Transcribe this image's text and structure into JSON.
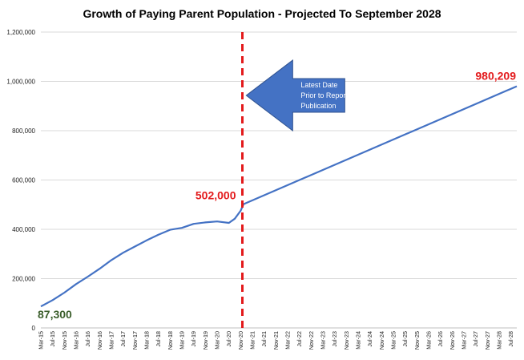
{
  "chart_data": {
    "type": "line",
    "title": "Growth of Paying Parent Population - Projected To September 2028",
    "xlabel": "",
    "ylabel": "",
    "ylim": [
      0,
      1200000
    ],
    "y_ticks": [
      "0",
      "200,000",
      "400,000",
      "600,000",
      "800,000",
      "1,000,000",
      "1,200,000"
    ],
    "grid": "horizontal",
    "x_ticks": [
      "Mar-15",
      "Jul-15",
      "Nov-15",
      "Mar-16",
      "Jul-16",
      "Nov-16",
      "Mar-17",
      "Jul-17",
      "Nov-17",
      "Mar-18",
      "Jul-18",
      "Nov-18",
      "Mar-19",
      "Jul-19",
      "Nov-19",
      "Mar-20",
      "Jul-20",
      "Nov-20",
      "Mar-21",
      "Jul-21",
      "Nov-21",
      "Mar-22",
      "Jul-22",
      "Nov-22",
      "Mar-23",
      "Jul-23",
      "Nov-23",
      "Mar-24",
      "Jul-24",
      "Nov-24",
      "Mar-25",
      "Jul-25",
      "Nov-25",
      "Mar-26",
      "Jul-26",
      "Nov-26",
      "Mar-27",
      "Jul-27",
      "Nov-27",
      "Mar-28",
      "Jul-28"
    ],
    "series": [
      {
        "color": "#4472c4",
        "x": [
          "Mar-15",
          "Jul-15",
          "Nov-15",
          "Mar-16",
          "Jul-16",
          "Nov-16",
          "Mar-17",
          "Jul-17",
          "Nov-17",
          "Mar-18",
          "Jul-18",
          "Nov-18",
          "Mar-19",
          "Jul-19",
          "Nov-19",
          "Mar-20",
          "Jul-20",
          "Sep-20",
          "Nov-20",
          "Dec-20",
          "Sep-28"
        ],
        "values": [
          87300,
          113000,
          143000,
          178000,
          208000,
          240000,
          275000,
          305000,
          330000,
          355000,
          378000,
          398000,
          406000,
          422000,
          428000,
          432000,
          426000,
          443000,
          475000,
          502000,
          980209
        ]
      }
    ],
    "annotations": [
      {
        "text": "87,300",
        "color": "#3b5e2b"
      },
      {
        "text": "502,000",
        "color": "#e31a1c"
      },
      {
        "text": "980,209",
        "color": "#e31a1c"
      }
    ],
    "marker_line": {
      "color": "#e31a1c",
      "style": "dashed"
    },
    "callout": {
      "lines": [
        "Latest Date",
        "Prior to Report",
        "Publication"
      ],
      "color": "#4472c4"
    }
  }
}
